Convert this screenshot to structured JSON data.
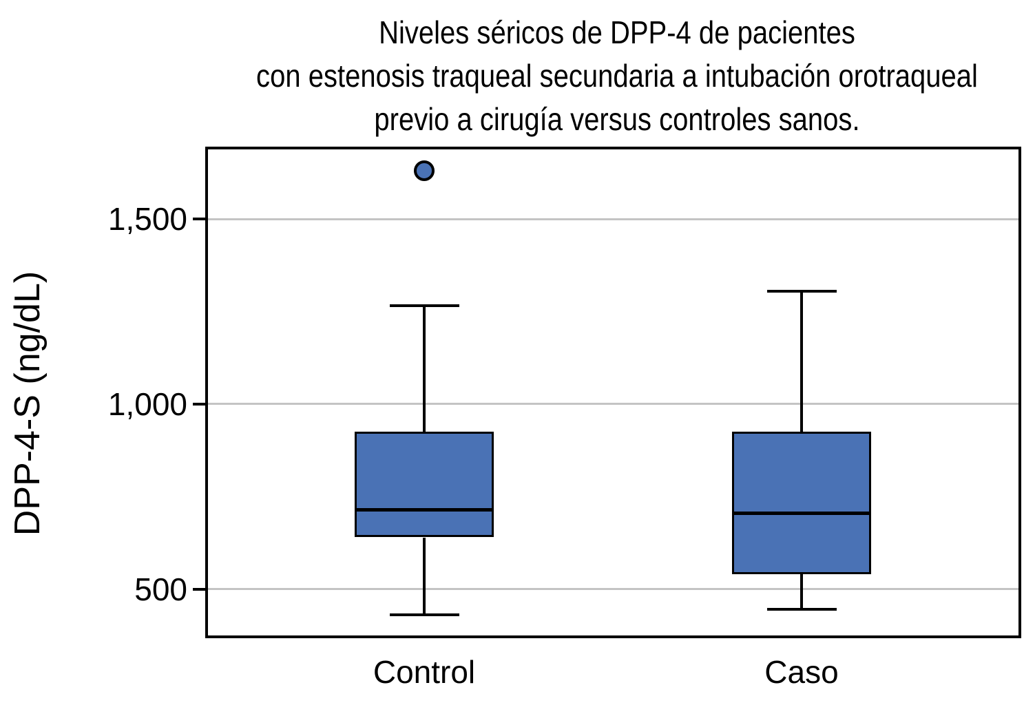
{
  "title": {
    "lines": [
      "Niveles séricos de DPP-4 de pacientes",
      "con estenosis traqueal secundaria a intubación orotraqueal",
      "previo a cirugía versus controles sanos."
    ]
  },
  "colors": {
    "box_fill": "#4a72b5",
    "box_border": "#000000",
    "gridline": "#c4c4c4",
    "background": "#ffffff",
    "text": "#000000"
  },
  "chart_data": {
    "type": "boxplot",
    "title": "Niveles séricos de DPP-4 de pacientes con estenosis traqueal secundaria a intubación orotraqueal previo a cirugía versus controles sanos.",
    "ylabel": "DPP-4-S (ng/dL)",
    "xlabel": "",
    "ylim": [
      375,
      1688
    ],
    "grid": true,
    "legend": "none",
    "yticks": [
      {
        "value": 500,
        "label": "500"
      },
      {
        "value": 1000,
        "label": "1,000"
      },
      {
        "value": 1500,
        "label": "1,500"
      }
    ],
    "categories": [
      "Control",
      "Caso"
    ],
    "series": [
      {
        "name": "Control",
        "min": 430,
        "q1": 640,
        "median": 715,
        "q3": 925,
        "max": 1265,
        "outliers": [
          1630
        ]
      },
      {
        "name": "Caso",
        "min": 445,
        "q1": 540,
        "median": 705,
        "q3": 925,
        "max": 1305,
        "outliers": []
      }
    ]
  }
}
